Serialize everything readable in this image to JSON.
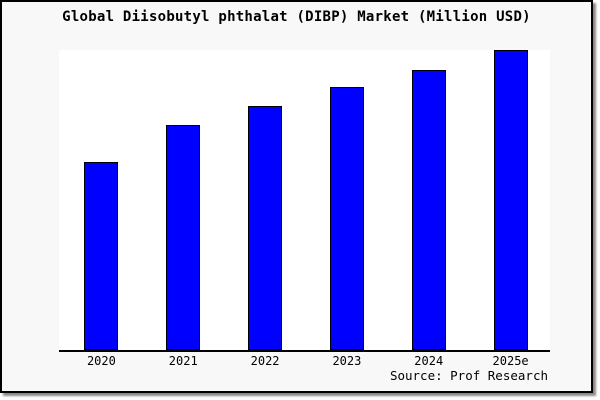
{
  "chart_data": {
    "type": "bar",
    "title": "Global Diisobutyl phthalat (DIBP) Market (Million USD)",
    "categories": [
      "2020",
      "2021",
      "2022",
      "2023",
      "2024",
      "2025e"
    ],
    "values": [
      188,
      225,
      244,
      263,
      280,
      300
    ],
    "value_note": "no y-axis ticks or labels shown; values estimated as relative bar heights in plot pixels, tallest bar (2025e) spans full plot height",
    "xlabel": "",
    "ylabel": "",
    "ylim": [
      0,
      300
    ],
    "grid": false,
    "legend": false,
    "source": "Source: Prof Research"
  },
  "colors": {
    "bar_fill": "#0000ff",
    "bar_border": "#000000",
    "figure_bg": "#f8f8f8",
    "plot_bg": "#ffffff",
    "frame_border": "#000000",
    "axis_line": "#000000",
    "text": "#000000"
  }
}
